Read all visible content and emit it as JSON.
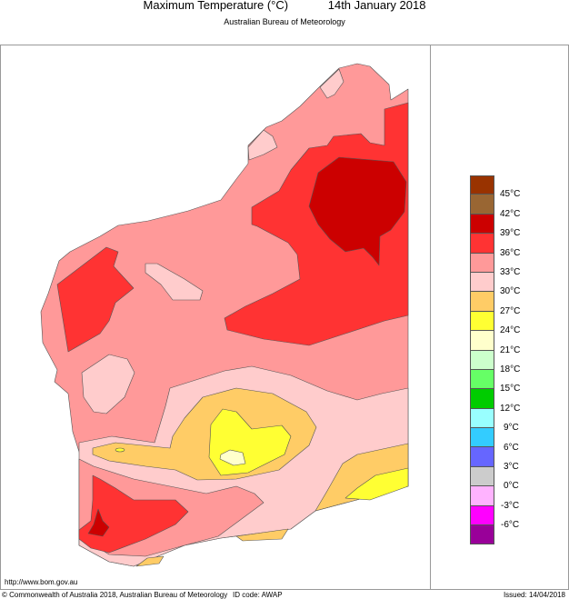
{
  "header": {
    "title": "Maximum Temperature (°C)",
    "date": "14th January 2018",
    "subtitle": "Australian Bureau of Meteorology"
  },
  "legend": {
    "colors": [
      "#993300",
      "#996633",
      "#cc0000",
      "#ff3333",
      "#ff9999",
      "#ffcccc",
      "#ffcc66",
      "#ffff33",
      "#ffffcc",
      "#ccffcc",
      "#66ff66",
      "#00cc00",
      "#99ffff",
      "#33ccff",
      "#6666ff",
      "#cccccc",
      "#ffb3ff",
      "#ff00ff",
      "#990099"
    ],
    "labels": [
      "45°C",
      "42°C",
      "39°C",
      "36°C",
      "33°C",
      "30°C",
      "27°C",
      "24°C",
      "21°C",
      "18°C",
      "15°C",
      "12°C",
      "9°C",
      "6°C",
      "3°C",
      "0°C",
      "-3°C",
      "-6°C"
    ]
  },
  "footer": {
    "url": "http://www.bom.gov.au",
    "copyright": "© Commonwealth of Australia 2018, Australian Bureau of Meteorology",
    "id_code": "ID code: AWAP",
    "issued": "Issued: 14/04/2018"
  }
}
